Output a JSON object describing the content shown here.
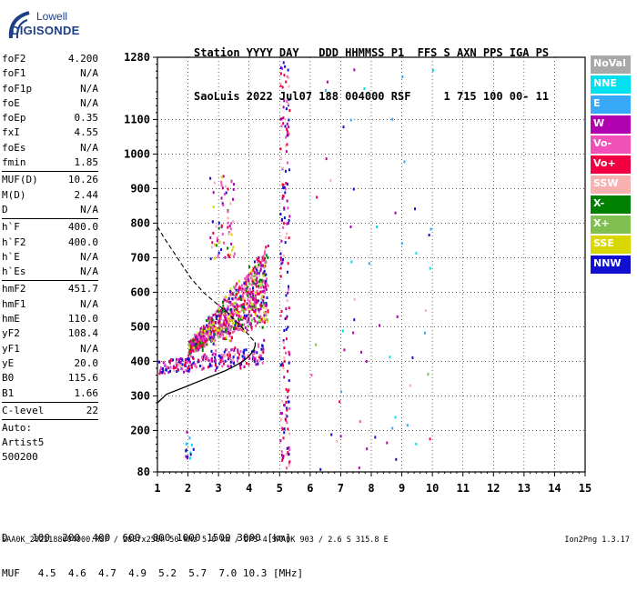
{
  "logo": {
    "line1": "Lowell",
    "line2": "DIGISONDE"
  },
  "header": {
    "line1": "Station YYYY DAY   DDD HHMMSS P1  FFS S AXN PPS IGA PS",
    "line2": "SaoLuis 2022 Jul07 188 004000 RSF     1 715 100 00- 11"
  },
  "params": {
    "group1": [
      {
        "name": "foF2",
        "value": "4.200"
      },
      {
        "name": "foF1",
        "value": "N/A"
      },
      {
        "name": "foF1p",
        "value": "N/A"
      },
      {
        "name": "foE",
        "value": "N/A"
      },
      {
        "name": "foEp",
        "value": "0.35"
      },
      {
        "name": "fxI",
        "value": "4.55"
      },
      {
        "name": "foEs",
        "value": "N/A"
      },
      {
        "name": "fmin",
        "value": "1.85"
      }
    ],
    "group2": [
      {
        "name": "MUF(D)",
        "value": "10.26"
      },
      {
        "name": "M(D)",
        "value": "2.44"
      },
      {
        "name": "D",
        "value": "N/A"
      }
    ],
    "group3": [
      {
        "name": "h`F",
        "value": "400.0"
      },
      {
        "name": "h`F2",
        "value": "400.0"
      },
      {
        "name": "h`E",
        "value": "N/A"
      },
      {
        "name": "h`Es",
        "value": "N/A"
      }
    ],
    "group4": [
      {
        "name": "hmF2",
        "value": "451.7"
      },
      {
        "name": "hmF1",
        "value": "N/A"
      },
      {
        "name": "hmE",
        "value": "110.0"
      },
      {
        "name": "yF2",
        "value": "108.4"
      },
      {
        "name": "yF1",
        "value": "N/A"
      },
      {
        "name": "yE",
        "value": "20.0"
      },
      {
        "name": "B0",
        "value": "115.6"
      },
      {
        "name": "B1",
        "value": "1.66"
      }
    ],
    "group5": [
      {
        "name": "C-level",
        "value": "22"
      }
    ],
    "auto": [
      "Auto:",
      "Artist5",
      "500200"
    ]
  },
  "legend": [
    {
      "label": "NoVal",
      "color": "#a8a8a8"
    },
    {
      "label": "NNE",
      "color": "#00e0f0"
    },
    {
      "label": "E",
      "color": "#38a8f8"
    },
    {
      "label": "W",
      "color": "#b000b0"
    },
    {
      "label": "Vo-",
      "color": "#f050b8"
    },
    {
      "label": "Vo+",
      "color": "#f00040"
    },
    {
      "label": "SSW",
      "color": "#f8b0b0"
    },
    {
      "label": "X-",
      "color": "#008000"
    },
    {
      "label": "X+",
      "color": "#80c050"
    },
    {
      "label": "SSE",
      "color": "#d8d800"
    },
    {
      "label": "NNW",
      "color": "#1010d0"
    }
  ],
  "bottom": {
    "line1": "D    100  200  400  600  800 1000 1500 3000 [km]",
    "line2": "MUF   4.5  4.6  4.7  4.9  5.2  5.7  7.0 10.3 [MHz]"
  },
  "footer": {
    "left": "SAA0K_2022188004000.RSF / 280fx256h 50 kHz 5.0 km / DPS-4 SAA0K 903 / 2.6 S 315.8 E",
    "right": "Ion2Png 1.3.17"
  },
  "chart_data": {
    "type": "scatter",
    "xlim": [
      1,
      15
    ],
    "ylim": [
      80,
      1280
    ],
    "x_ticks": [
      1,
      2,
      3,
      4,
      5,
      6,
      7,
      8,
      9,
      10,
      11,
      12,
      13,
      14,
      15
    ],
    "y_ticks": [
      80,
      200,
      300,
      400,
      500,
      600,
      700,
      800,
      900,
      1000,
      1100,
      1280
    ],
    "grid": true,
    "profile_curve": {
      "freq": [
        1.0,
        1.3,
        1.8,
        2.3,
        2.8,
        3.2,
        3.5,
        3.8,
        4.0,
        4.15,
        4.2,
        4.2
      ],
      "height": [
        280,
        305,
        322,
        340,
        358,
        372,
        385,
        400,
        415,
        432,
        445,
        455
      ]
    },
    "dashed_curve": {
      "freq": [
        1.0,
        1.2,
        1.5,
        1.8,
        2.1,
        2.5,
        2.9,
        3.3,
        3.7,
        4.0,
        4.2
      ],
      "height": [
        790,
        760,
        720,
        680,
        640,
        600,
        570,
        540,
        505,
        475,
        455
      ]
    },
    "clusters": [
      {
        "f0": 1.0,
        "f1": 4.5,
        "h_low": 365,
        "h_high": 430,
        "n": 260,
        "weights": [
          0,
          0,
          0,
          3,
          3,
          2,
          1,
          0,
          0,
          0,
          4
        ]
      },
      {
        "f0": 2.0,
        "f1": 4.6,
        "h_low": 420,
        "h_high": 720,
        "n": 900,
        "weights": [
          0,
          0,
          0,
          3,
          4,
          3,
          1,
          2,
          1,
          2,
          1
        ]
      },
      {
        "f0": 2.7,
        "f1": 3.5,
        "h_low": 700,
        "h_high": 940,
        "n": 70,
        "weights": [
          0,
          0,
          0,
          2,
          2,
          1,
          1,
          1,
          0,
          1,
          1
        ]
      },
      {
        "f0": 5.0,
        "f1": 5.3,
        "h_low": 90,
        "h_high": 1270,
        "n": 170,
        "weights": [
          0,
          0,
          0,
          2,
          1,
          2,
          1,
          0,
          0,
          0,
          3
        ]
      },
      {
        "f0": 6.0,
        "f1": 10.0,
        "h_low": 90,
        "h_high": 1270,
        "n": 60,
        "weights": [
          0,
          3,
          3,
          2,
          1,
          1,
          1,
          0,
          1,
          0,
          2
        ]
      },
      {
        "f0": 1.9,
        "f1": 2.2,
        "h_low": 120,
        "h_high": 200,
        "n": 14,
        "weights": [
          0,
          3,
          2,
          1,
          0,
          0,
          0,
          0,
          0,
          0,
          2
        ]
      }
    ]
  }
}
